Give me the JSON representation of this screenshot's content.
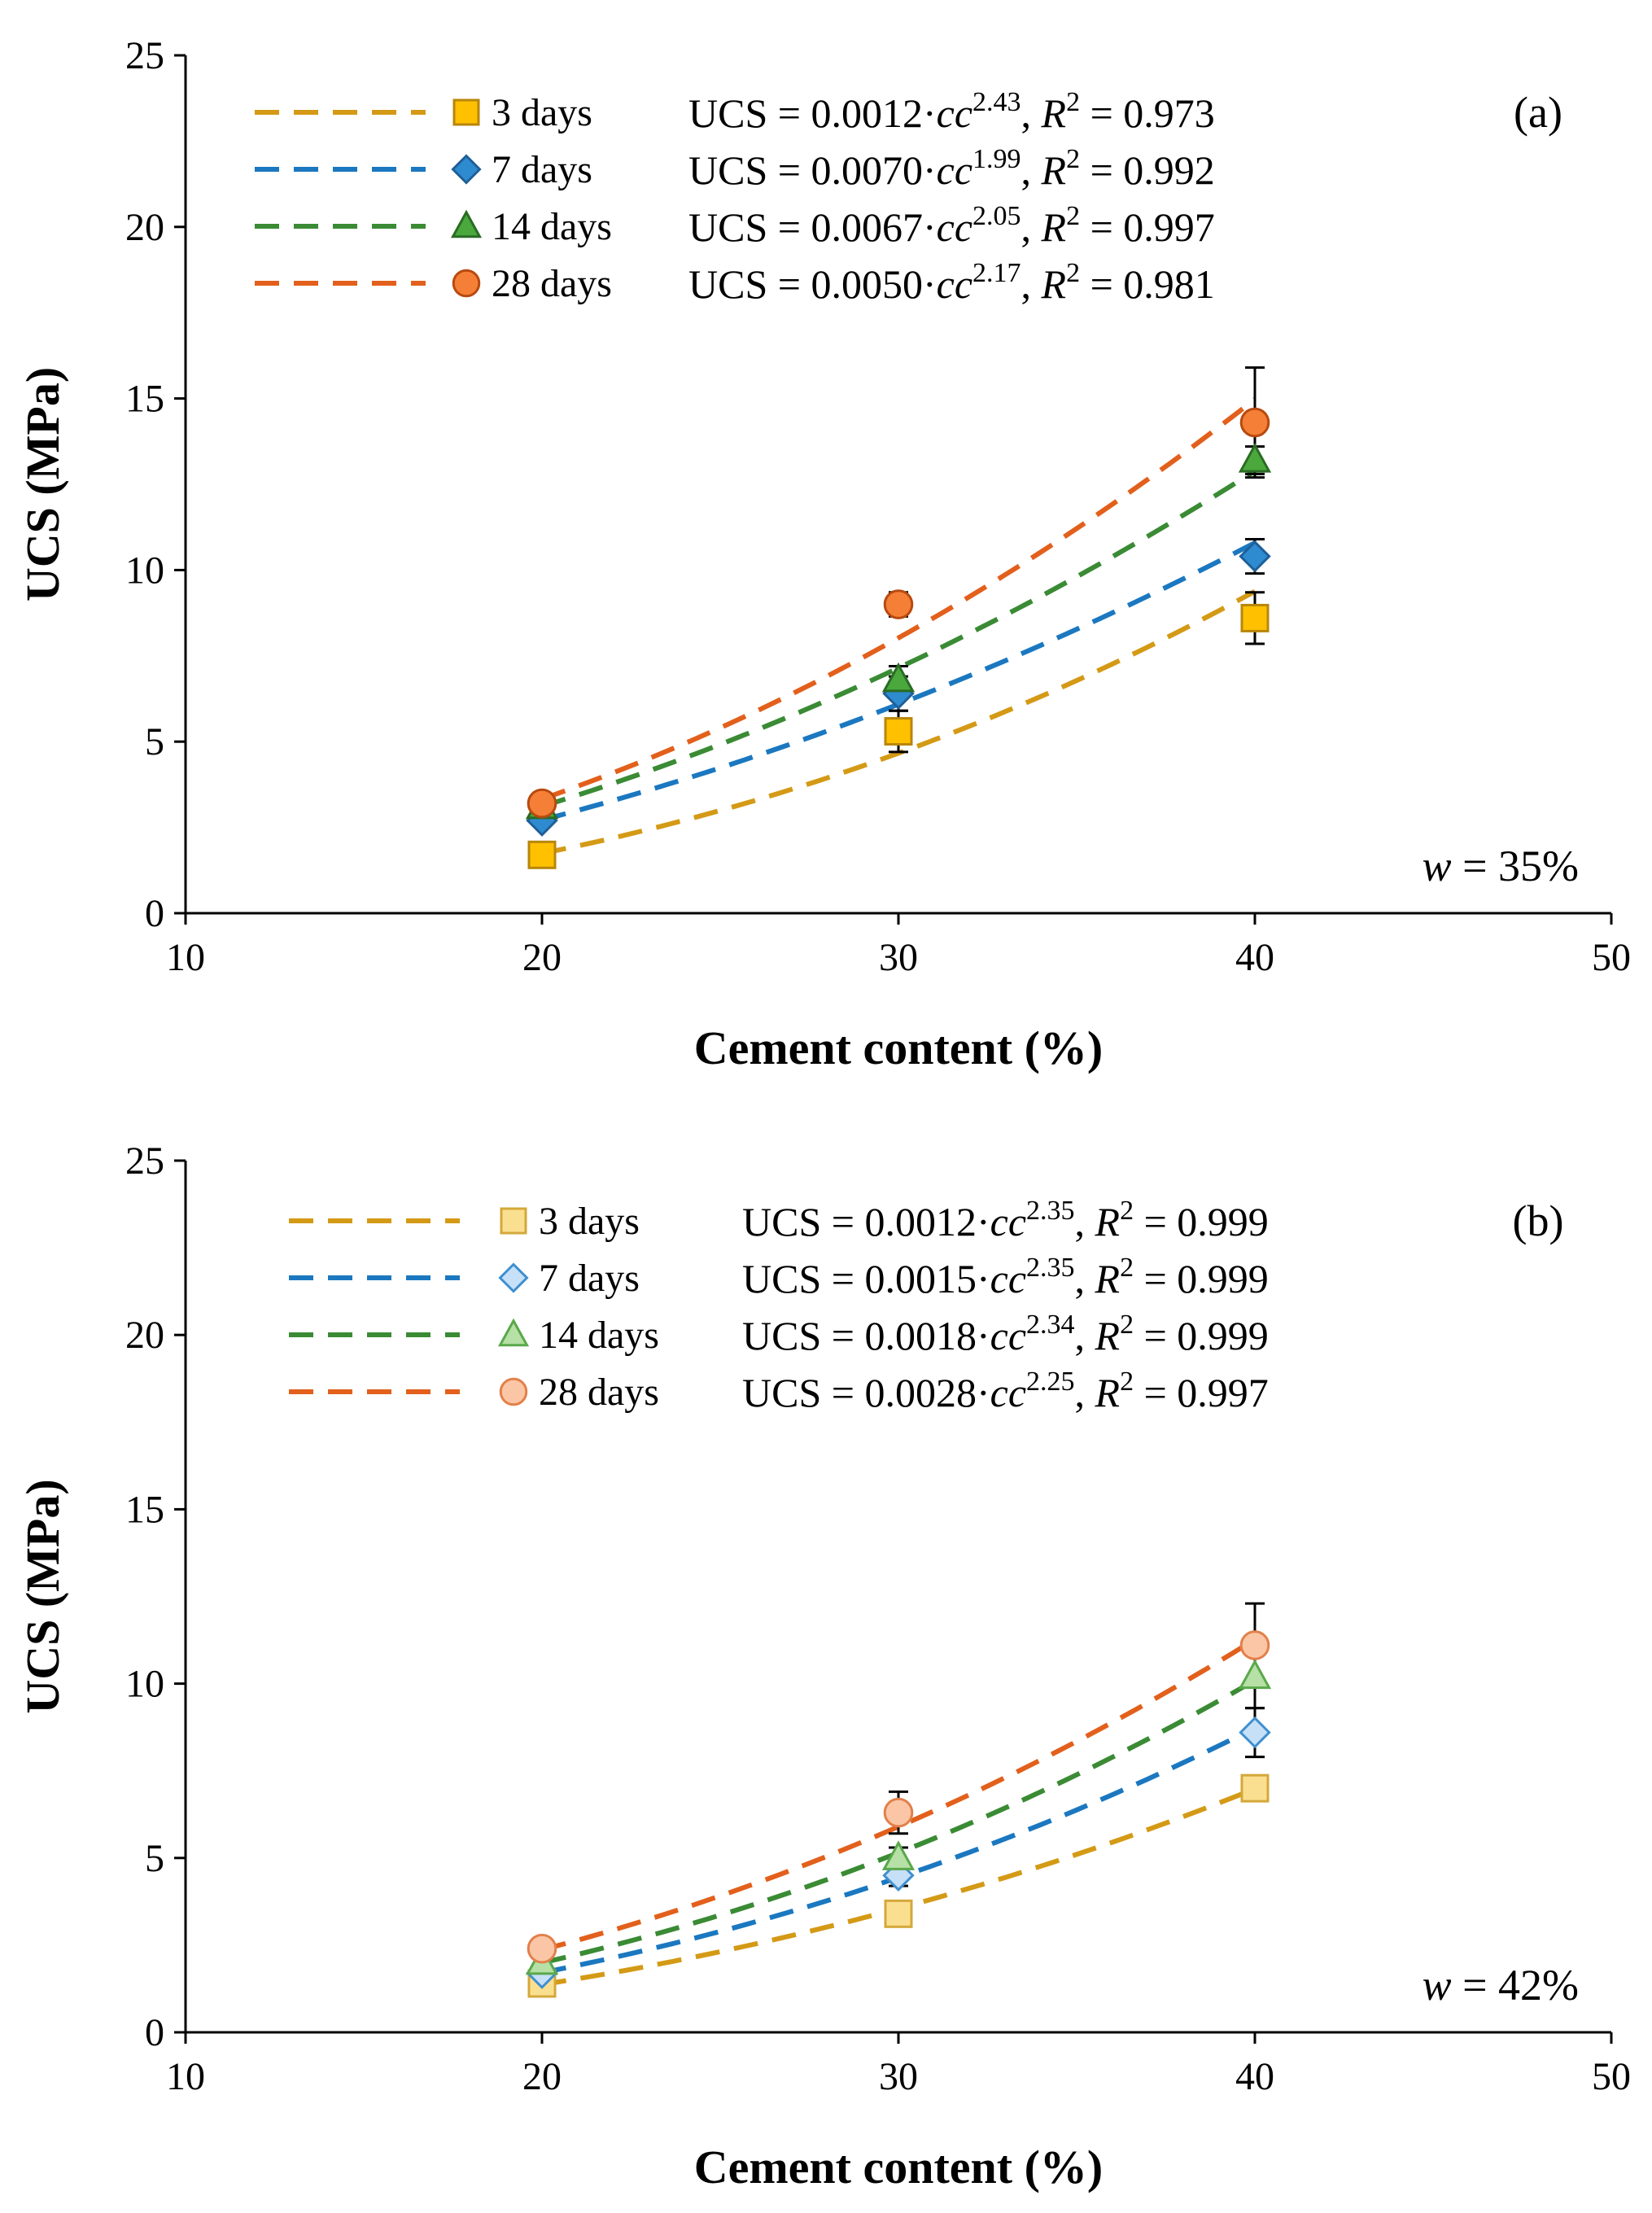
{
  "chart_data": [
    {
      "type": "scatter",
      "panel_label": "(a)",
      "water_label": "w",
      "water_value": " = 35%",
      "xlabel": "Cement content (%)",
      "ylabel": "UCS (MPa)",
      "xlim": [
        10,
        50
      ],
      "ylim": [
        0,
        25
      ],
      "x_ticks": [
        10,
        20,
        30,
        40,
        50
      ],
      "y_ticks": [
        0,
        5,
        10,
        15,
        20,
        25
      ],
      "x": [
        20,
        30,
        40
      ],
      "legend_position": "top-left",
      "marker_style": "filled",
      "series": [
        {
          "name": "3 days",
          "marker": "square",
          "values": [
            1.7,
            5.3,
            8.6
          ],
          "errors": [
            0,
            0.6,
            0.75
          ],
          "fit": {
            "a": 0.0012,
            "b": 2.43
          },
          "equation": {
            "coef": "UCS = 0.0012·",
            "exp": "2.43",
            "r2": " = 0.973"
          }
        },
        {
          "name": "7 days",
          "marker": "diamond",
          "values": [
            2.7,
            6.4,
            10.4
          ],
          "errors": [
            0,
            0.5,
            0.5
          ],
          "fit": {
            "a": 0.007,
            "b": 1.99
          },
          "equation": {
            "coef": "UCS = 0.0070·",
            "exp": "1.99",
            "r2": " = 0.992"
          }
        },
        {
          "name": "14 days",
          "marker": "triangle",
          "values": [
            3.1,
            6.8,
            13.2
          ],
          "errors": [
            0,
            0.4,
            0.4
          ],
          "fit": {
            "a": 0.0067,
            "b": 2.05
          },
          "equation": {
            "coef": "UCS = 0.0067·",
            "exp": "2.05",
            "r2": " = 0.997"
          }
        },
        {
          "name": "28 days",
          "marker": "circle",
          "values": [
            3.2,
            9.0,
            14.3
          ],
          "errors": [
            0,
            0.35,
            1.6
          ],
          "fit": {
            "a": 0.005,
            "b": 2.17
          },
          "equation": {
            "coef": "UCS = 0.0050·",
            "exp": "2.17",
            "r2": " = 0.981"
          }
        }
      ]
    },
    {
      "type": "scatter",
      "panel_label": "(b)",
      "water_label": "w",
      "water_value": " = 42%",
      "xlabel": "Cement content (%)",
      "ylabel": "UCS (MPa)",
      "xlim": [
        10,
        50
      ],
      "ylim": [
        0,
        25
      ],
      "x_ticks": [
        10,
        20,
        30,
        40,
        50
      ],
      "y_ticks": [
        0,
        5,
        10,
        15,
        20,
        25
      ],
      "x": [
        20,
        30,
        40
      ],
      "legend_position": "top-left",
      "marker_style": "light",
      "series": [
        {
          "name": "3 days",
          "marker": "square",
          "values": [
            1.4,
            3.4,
            7.0
          ],
          "errors": [
            0,
            0.2,
            0.2
          ],
          "fit": {
            "a": 0.0012,
            "b": 2.35
          },
          "equation": {
            "coef": "UCS = 0.0012·",
            "exp": "2.35",
            "r2": " = 0.999"
          }
        },
        {
          "name": "7 days",
          "marker": "diamond",
          "values": [
            1.7,
            4.5,
            8.6
          ],
          "errors": [
            0,
            0.3,
            0.7
          ],
          "fit": {
            "a": 0.0015,
            "b": 2.35
          },
          "equation": {
            "coef": "UCS = 0.0015·",
            "exp": "2.35",
            "r2": " = 0.999"
          }
        },
        {
          "name": "14 days",
          "marker": "triangle",
          "values": [
            2.0,
            5.0,
            10.2
          ],
          "errors": [
            0,
            0.3,
            0.9
          ],
          "fit": {
            "a": 0.0018,
            "b": 2.34
          },
          "equation": {
            "coef": "UCS = 0.0018·",
            "exp": "2.34",
            "r2": " = 0.999"
          }
        },
        {
          "name": "28 days",
          "marker": "circle",
          "values": [
            2.4,
            6.3,
            11.1
          ],
          "errors": [
            0,
            0.6,
            1.2
          ],
          "fit": {
            "a": 0.0028,
            "b": 2.25
          },
          "equation": {
            "coef": "UCS = 0.0028·",
            "exp": "2.25",
            "r2": " = 0.997"
          }
        }
      ]
    }
  ],
  "equation_var": "cc",
  "equation_r": "R",
  "equation_r_sup": "2",
  "colors": {
    "3 days": {
      "line": "#d49a16",
      "fill": "#ffc000",
      "light": "#fbdf90",
      "stroke": "#b8860b",
      "lightStroke": "#d4a83a"
    },
    "7 days": {
      "line": "#1b78c0",
      "fill": "#2e8bd0",
      "light": "#c6e0f7",
      "stroke": "#1f5f99",
      "lightStroke": "#3e8fd0"
    },
    "14 days": {
      "line": "#3a8b34",
      "fill": "#4aa83c",
      "light": "#b6e0a6",
      "stroke": "#2a6b24",
      "lightStroke": "#5aa84a"
    },
    "28 days": {
      "line": "#e2601c",
      "fill": "#f57f36",
      "light": "#fbc6a6",
      "stroke": "#b84a10",
      "lightStroke": "#e2804a"
    }
  }
}
